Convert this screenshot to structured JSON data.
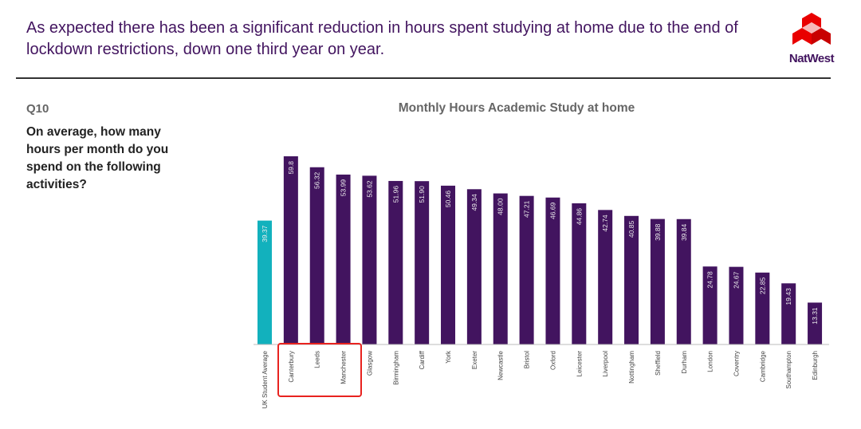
{
  "headline": "As expected there has been a significant reduction in hours spent studying at home due to the end of lockdown restrictions, down one third year on year.",
  "brand": {
    "name": "NatWest",
    "color": "#42145f",
    "logo_color": "#e90000"
  },
  "question": {
    "number": "Q10",
    "text": "On average, how many hours per month do you spend on the following activities?"
  },
  "chart_data": {
    "type": "bar",
    "title": "Monthly Hours Academic Study at home",
    "categories": [
      "UK Student Average",
      "Canterbury",
      "Leeds",
      "Manchester",
      "Glasgow",
      "Birmingham",
      "Cardiff",
      "York",
      "Exeter",
      "Newcastle",
      "Bristol",
      "Oxford",
      "Leicester",
      "Liverpool",
      "Nottingham",
      "Sheffield",
      "Durham",
      "London",
      "Coventry",
      "Cambridge",
      "Southampton",
      "Edinburgh"
    ],
    "values": [
      39.37,
      59.8,
      56.32,
      53.99,
      53.62,
      51.96,
      51.9,
      50.46,
      49.34,
      48.0,
      47.21,
      46.69,
      44.86,
      42.74,
      40.85,
      39.88,
      39.84,
      24.78,
      24.67,
      22.85,
      19.43,
      13.31
    ],
    "labels": [
      "39.37",
      "59.8",
      "56.32",
      "53.99",
      "53.62",
      "51.96",
      "51.90",
      "50.46",
      "49.34",
      "48.00",
      "47.21",
      "46.69",
      "44.86",
      "42.74",
      "40.85",
      "39.88",
      "39.84",
      "24.78",
      "24.67",
      "22.85",
      "19.43",
      "13.31"
    ],
    "colors": {
      "average": "#12b1bd",
      "city": "#42145f",
      "highlight_box": "#e8231f"
    },
    "highlighted": [
      "Canterbury",
      "Leeds",
      "Manchester"
    ],
    "ylim": [
      0,
      62
    ],
    "xlabel": "",
    "ylabel": "",
    "legend": "none",
    "grid": false
  }
}
